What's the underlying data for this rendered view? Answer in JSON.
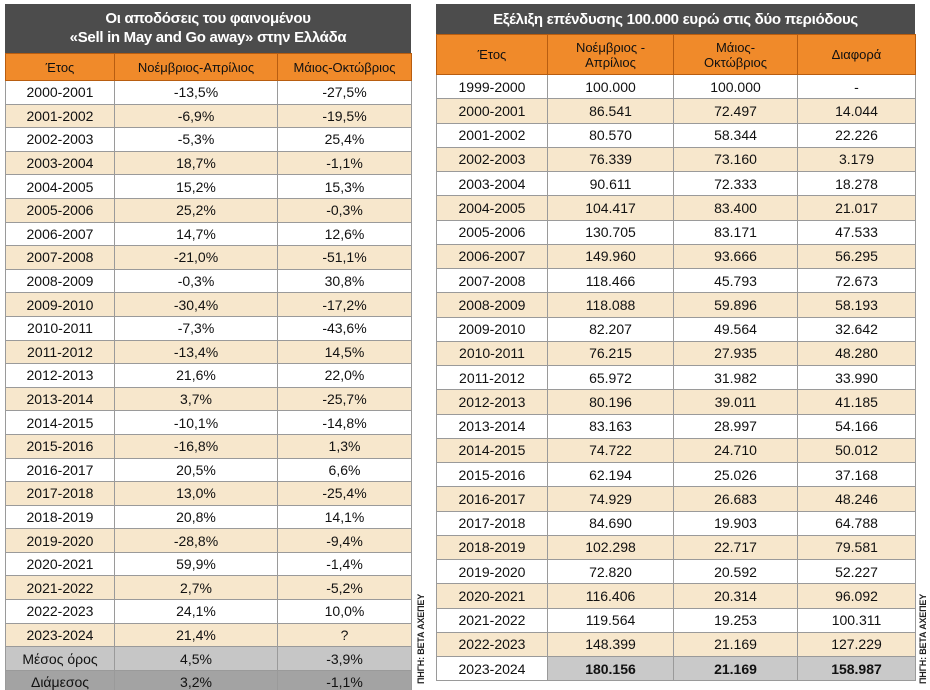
{
  "left_table": {
    "title_line1": "Οι αποδόσεις του φαινομένου",
    "title_line2": "«Sell in May and Go away» στην Ελλάδα",
    "headers": [
      "Έτος",
      "Νοέμβριος-Απρίλιος",
      "Μάιος-Οκτώβριος"
    ],
    "rows": [
      [
        "2000-2001",
        "-13,5%",
        "-27,5%"
      ],
      [
        "2001-2002",
        "-6,9%",
        "-19,5%"
      ],
      [
        "2002-2003",
        "-5,3%",
        "25,4%"
      ],
      [
        "2003-2004",
        "18,7%",
        "-1,1%"
      ],
      [
        "2004-2005",
        "15,2%",
        "15,3%"
      ],
      [
        "2005-2006",
        "25,2%",
        "-0,3%"
      ],
      [
        "2006-2007",
        "14,7%",
        "12,6%"
      ],
      [
        "2007-2008",
        "-21,0%",
        "-51,1%"
      ],
      [
        "2008-2009",
        "-0,3%",
        "30,8%"
      ],
      [
        "2009-2010",
        "-30,4%",
        "-17,2%"
      ],
      [
        "2010-2011",
        "-7,3%",
        "-43,6%"
      ],
      [
        "2011-2012",
        "-13,4%",
        "14,5%"
      ],
      [
        "2012-2013",
        "21,6%",
        "22,0%"
      ],
      [
        "2013-2014",
        "3,7%",
        "-25,7%"
      ],
      [
        "2014-2015",
        "-10,1%",
        "-14,8%"
      ],
      [
        "2015-2016",
        "-16,8%",
        "1,3%"
      ],
      [
        "2016-2017",
        "20,5%",
        "6,6%"
      ],
      [
        "2017-2018",
        "13,0%",
        "-25,4%"
      ],
      [
        "2018-2019",
        "20,8%",
        "14,1%"
      ],
      [
        "2019-2020",
        "-28,8%",
        "-9,4%"
      ],
      [
        "2020-2021",
        "59,9%",
        "-1,4%"
      ],
      [
        "2021-2022",
        "2,7%",
        "-5,2%"
      ],
      [
        "2022-2023",
        "24,1%",
        "10,0%"
      ],
      [
        "2023-2024",
        "21,4%",
        "?"
      ]
    ],
    "average": [
      "Μέσος όρος",
      "4,5%",
      "-3,9%"
    ],
    "median": [
      "Διάμεσος",
      "3,2%",
      "-1,1%"
    ]
  },
  "right_table": {
    "title": "Εξέλιξη επένδυσης 100.000 ευρώ στις δύο περιόδους",
    "headers": [
      "Έτος",
      "Νοέμβριος -\nΑπρίλιος",
      "Μάιος-\nΟκτώβριος",
      "Διαφορά"
    ],
    "rows": [
      [
        "1999-2000",
        "100.000",
        "100.000",
        "-"
      ],
      [
        "2000-2001",
        "86.541",
        "72.497",
        "14.044"
      ],
      [
        "2001-2002",
        "80.570",
        "58.344",
        "22.226"
      ],
      [
        "2002-2003",
        "76.339",
        "73.160",
        "3.179"
      ],
      [
        "2003-2004",
        "90.611",
        "72.333",
        "18.278"
      ],
      [
        "2004-2005",
        "104.417",
        "83.400",
        "21.017"
      ],
      [
        "2005-2006",
        "130.705",
        "83.171",
        "47.533"
      ],
      [
        "2006-2007",
        "149.960",
        "93.666",
        "56.295"
      ],
      [
        "2007-2008",
        "118.466",
        "45.793",
        "72.673"
      ],
      [
        "2008-2009",
        "118.088",
        "59.896",
        "58.193"
      ],
      [
        "2009-2010",
        "82.207",
        "49.564",
        "32.642"
      ],
      [
        "2010-2011",
        "76.215",
        "27.935",
        "48.280"
      ],
      [
        "2011-2012",
        "65.972",
        "31.982",
        "33.990"
      ],
      [
        "2012-2013",
        "80.196",
        "39.011",
        "41.185"
      ],
      [
        "2013-2014",
        "83.163",
        "28.997",
        "54.166"
      ],
      [
        "2014-2015",
        "74.722",
        "24.710",
        "50.012"
      ],
      [
        "2015-2016",
        "62.194",
        "25.026",
        "37.168"
      ],
      [
        "2016-2017",
        "74.929",
        "26.683",
        "48.246"
      ],
      [
        "2017-2018",
        "84.690",
        "19.903",
        "64.788"
      ],
      [
        "2018-2019",
        "102.298",
        "22.717",
        "79.581"
      ],
      [
        "2019-2020",
        "72.820",
        "20.592",
        "52.227"
      ],
      [
        "2020-2021",
        "116.406",
        "20.314",
        "96.092"
      ],
      [
        "2021-2022",
        "119.564",
        "19.253",
        "100.311"
      ],
      [
        "2022-2023",
        "148.399",
        "21.169",
        "127.229"
      ],
      [
        "2023-2024",
        "180.156",
        "21.169",
        "158.987"
      ]
    ]
  },
  "source_label": "ΠΗΓΗ: ΒΕΤΑ ΑΧΕΠΕΥ",
  "colors": {
    "header_orange": "#f08a2a",
    "alt_row": "#f7e7cc",
    "title_bar": "#4c4c4c"
  }
}
